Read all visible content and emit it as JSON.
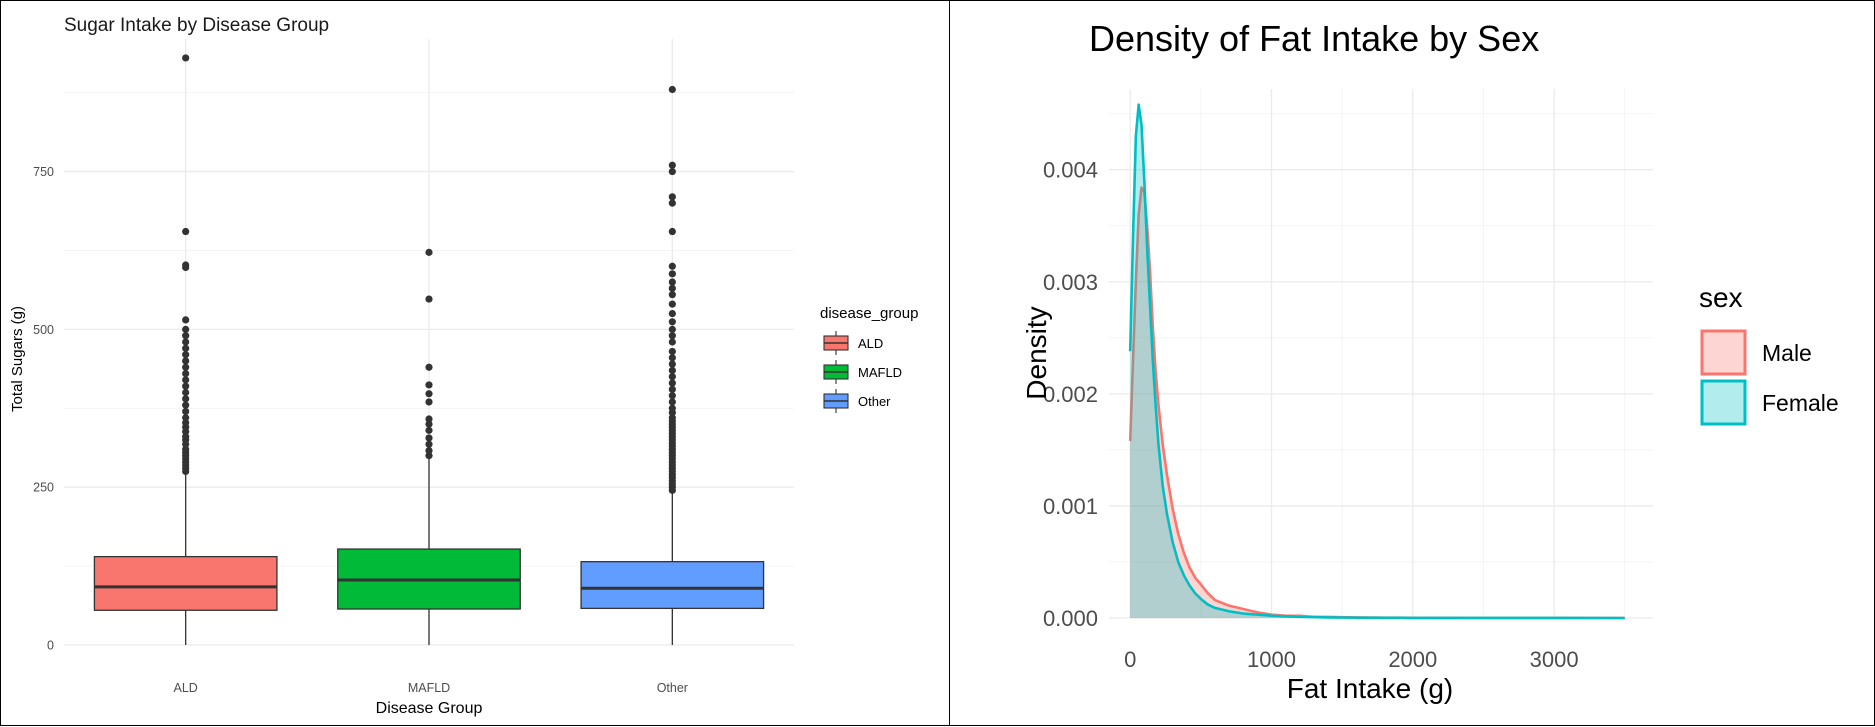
{
  "chart_data": [
    {
      "type": "box",
      "title": "Sugar Intake by Disease Group",
      "xlabel": "Disease Group",
      "ylabel": "Total Sugars (g)",
      "ylim": [
        0,
        960
      ],
      "yticks": [
        0,
        250,
        500,
        750
      ],
      "yticklabels": [
        "0",
        "250",
        "500",
        "750"
      ],
      "grid": true,
      "legend": {
        "title": "disease_group",
        "position": "right",
        "entries": [
          "ALD",
          "MAFLD",
          "Other"
        ]
      },
      "colors": {
        "ALD": "#f8766d",
        "MAFLD": "#00ba38",
        "Other": "#619cff"
      },
      "categories": [
        "ALD",
        "MAFLD",
        "Other"
      ],
      "boxes": [
        {
          "category": "ALD",
          "min": 0,
          "q1": 55,
          "median": 92,
          "q3": 140,
          "whisker_high": 270,
          "outliers": [
            275,
            280,
            285,
            290,
            295,
            300,
            305,
            310,
            318,
            325,
            330,
            338,
            345,
            352,
            360,
            370,
            380,
            390,
            400,
            410,
            420,
            430,
            440,
            450,
            460,
            470,
            480,
            490,
            500,
            515,
            598,
            602,
            655,
            930
          ]
        },
        {
          "category": "MAFLD",
          "min": 0,
          "q1": 57,
          "median": 103,
          "q3": 152,
          "whisker_high": 295,
          "outliers": [
            300,
            308,
            318,
            328,
            340,
            350,
            358,
            385,
            398,
            412,
            440,
            548,
            622
          ]
        },
        {
          "category": "Other",
          "min": 0,
          "q1": 58,
          "median": 90,
          "q3": 132,
          "whisker_high": 240,
          "outliers": [
            245,
            250,
            255,
            260,
            265,
            270,
            275,
            280,
            285,
            290,
            295,
            300,
            305,
            310,
            315,
            320,
            325,
            330,
            335,
            340,
            345,
            350,
            355,
            360,
            368,
            375,
            385,
            395,
            405,
            415,
            425,
            435,
            445,
            455,
            465,
            480,
            490,
            500,
            512,
            525,
            540,
            555,
            565,
            575,
            588,
            600,
            655,
            700,
            710,
            750,
            760,
            880
          ]
        }
      ]
    },
    {
      "type": "area",
      "title": "Density of Fat Intake by Sex",
      "xlabel": "Fat Intake (g)",
      "ylabel": "Density",
      "xlim": [
        -150,
        3700
      ],
      "ylim": [
        0,
        0.00472
      ],
      "xticks": [
        0,
        1000,
        2000,
        3000
      ],
      "xticklabels": [
        "0",
        "1000",
        "2000",
        "3000"
      ],
      "yticks": [
        0,
        0.001,
        0.002,
        0.003,
        0.004
      ],
      "yticklabels": [
        "0.000",
        "0.001",
        "0.002",
        "0.003",
        "0.004"
      ],
      "grid": true,
      "legend": {
        "title": "sex",
        "position": "right",
        "entries": [
          "Male",
          "Female"
        ]
      },
      "series": [
        {
          "name": "Male",
          "color": "#f8766d",
          "fill": "#f8766d",
          "x": [
            0,
            20,
            40,
            60,
            80,
            100,
            120,
            140,
            160,
            180,
            200,
            230,
            260,
            300,
            340,
            380,
            420,
            460,
            500,
            550,
            600,
            700,
            800,
            900,
            1000,
            1100,
            1200,
            1300,
            1400,
            1600,
            1800,
            2000,
            2500,
            3000,
            3500
          ],
          "y": [
            0.00158,
            0.0023,
            0.003,
            0.0036,
            0.00384,
            0.0038,
            0.0035,
            0.0031,
            0.0026,
            0.0022,
            0.0019,
            0.00155,
            0.00128,
            0.00098,
            0.00075,
            0.00058,
            0.00045,
            0.00036,
            0.0003,
            0.00022,
            0.00016,
            0.00011,
            8e-05,
            5e-05,
            3e-05,
            2e-05,
            2e-05,
            1e-05,
            1e-05,
            5e-06,
            3e-06,
            2e-06,
            1e-06,
            5e-07,
            0.0
          ]
        },
        {
          "name": "Female",
          "color": "#00bfc4",
          "fill": "#00bfc4",
          "x": [
            0,
            20,
            40,
            60,
            80,
            100,
            120,
            140,
            160,
            180,
            200,
            230,
            260,
            300,
            340,
            380,
            420,
            460,
            500,
            550,
            600,
            700,
            800,
            900,
            1000,
            1100,
            1200,
            1300,
            1400,
            1600,
            1800,
            2000,
            2500,
            3000,
            3500
          ],
          "y": [
            0.00238,
            0.0034,
            0.0043,
            0.00458,
            0.0044,
            0.0039,
            0.0033,
            0.0028,
            0.0023,
            0.0019,
            0.00155,
            0.00118,
            0.00093,
            0.00068,
            0.0005,
            0.00038,
            0.00029,
            0.00022,
            0.00017,
            0.00012,
            9e-05,
            6e-05,
            4e-05,
            3e-05,
            2e-05,
            1.5e-05,
            1e-05,
            8e-06,
            5e-06,
            3e-06,
            2e-06,
            1e-06,
            5e-07,
            3e-07,
            0.0
          ]
        }
      ]
    }
  ]
}
